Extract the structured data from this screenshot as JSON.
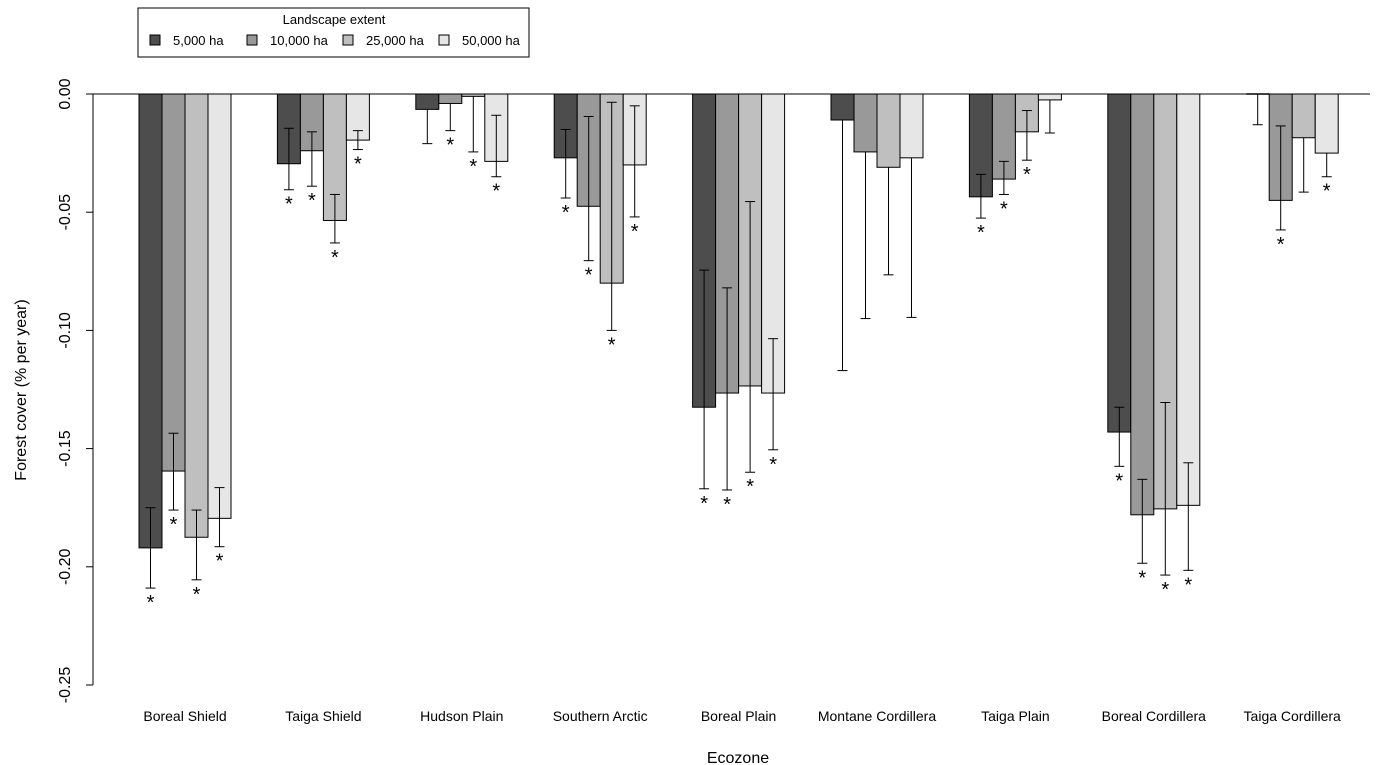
{
  "chart_data": {
    "type": "bar",
    "xlabel": "Ecozone",
    "ylabel": "Forest cover (% per year)",
    "ylim": [
      -0.25,
      0.0
    ],
    "yticks": [
      0.0,
      -0.05,
      -0.1,
      -0.15,
      -0.2,
      -0.25
    ],
    "ytick_labels": [
      "0.00",
      "-0.05",
      "-0.10",
      "-0.15",
      "-0.20",
      "-0.25"
    ],
    "grid": false,
    "reference_line": 0.0,
    "legend": {
      "title": "Landscape extent",
      "placement": "top-left"
    },
    "categories": [
      "Boreal Shield",
      "Taiga Shield",
      "Hudson Plain",
      "Southern Arctic",
      "Boreal Plain",
      "Montane Cordillera",
      "Taiga Plain",
      "Boreal Cordillera",
      "Taiga Cordillera"
    ],
    "series": [
      {
        "name": "5,000 ha",
        "color": "#4d4d4d",
        "values": [
          -0.192,
          -0.0295,
          -0.0065,
          -0.027,
          -0.1325,
          -0.011,
          -0.0435,
          -0.143,
          0.0
        ],
        "err_low": [
          -0.209,
          -0.0405,
          -0.021,
          -0.044,
          -0.167,
          -0.117,
          -0.0525,
          -0.1575,
          -0.013
        ],
        "err_high": [
          -0.175,
          -0.0145,
          -0.0065,
          -0.015,
          -0.0745,
          -0.011,
          -0.034,
          -0.1325,
          0.0
        ],
        "significant": [
          true,
          true,
          false,
          true,
          true,
          false,
          true,
          true,
          false
        ]
      },
      {
        "name": "10,000 ha",
        "color": "#999999",
        "values": [
          -0.1595,
          -0.024,
          -0.004,
          -0.0475,
          -0.1265,
          -0.0245,
          -0.036,
          -0.178,
          -0.045
        ],
        "err_low": [
          -0.176,
          -0.039,
          -0.0155,
          -0.0705,
          -0.1675,
          -0.095,
          -0.0425,
          -0.1985,
          -0.0575
        ],
        "err_high": [
          -0.1435,
          -0.016,
          -0.004,
          -0.0095,
          -0.082,
          -0.0245,
          -0.0285,
          -0.163,
          -0.0135
        ],
        "significant": [
          true,
          true,
          true,
          true,
          true,
          false,
          true,
          true,
          true
        ]
      },
      {
        "name": "25,000 ha",
        "color": "#bfbfbf",
        "values": [
          -0.1875,
          -0.0535,
          -0.001,
          -0.08,
          -0.1235,
          -0.031,
          -0.016,
          -0.1755,
          -0.0185
        ],
        "err_low": [
          -0.2055,
          -0.063,
          -0.0245,
          -0.1,
          -0.16,
          -0.0765,
          -0.028,
          -0.2035,
          -0.0415
        ],
        "err_high": [
          -0.176,
          -0.0425,
          -0.001,
          -0.0035,
          -0.0455,
          -0.031,
          -0.007,
          -0.1305,
          -0.0185
        ],
        "significant": [
          true,
          true,
          true,
          true,
          true,
          false,
          true,
          true,
          false
        ]
      },
      {
        "name": "50,000 ha",
        "color": "#e6e6e6",
        "values": [
          -0.1795,
          -0.0195,
          -0.0285,
          -0.03,
          -0.1265,
          -0.027,
          -0.0025,
          -0.174,
          -0.025
        ],
        "err_low": [
          -0.1915,
          -0.0235,
          -0.035,
          -0.052,
          -0.1505,
          -0.0945,
          -0.0165,
          -0.2015,
          -0.035
        ],
        "err_high": [
          -0.1665,
          -0.0155,
          -0.009,
          -0.005,
          -0.1035,
          -0.027,
          -0.0025,
          -0.156,
          -0.025
        ],
        "significant": [
          true,
          true,
          true,
          true,
          true,
          false,
          false,
          true,
          true
        ]
      }
    ]
  }
}
